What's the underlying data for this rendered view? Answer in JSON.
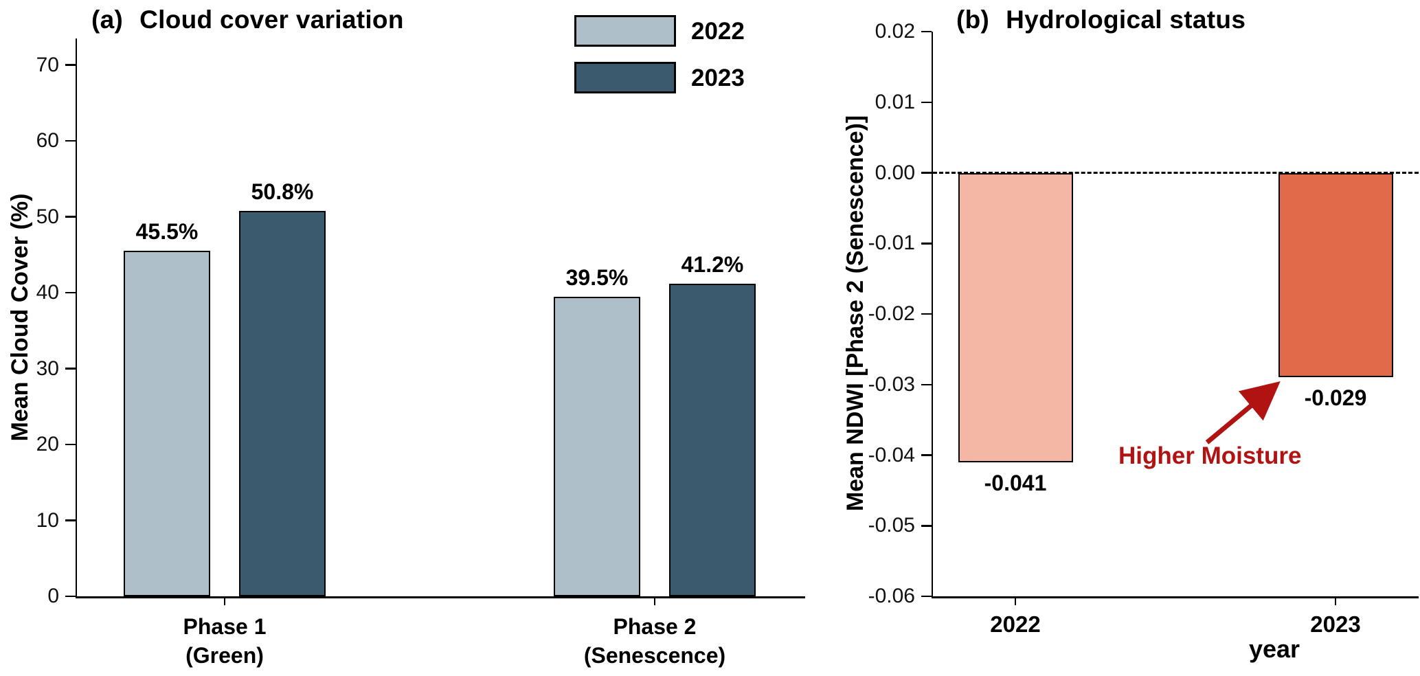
{
  "figure": {
    "panel_a": {
      "tag": "(a)",
      "title": "Cloud cover variation"
    },
    "panel_b": {
      "tag": "(b)",
      "title": "Hydrological status"
    }
  },
  "chart_data": [
    {
      "type": "bar",
      "panel": "a",
      "title": "(a) Cloud cover variation",
      "ylabel": "Mean Cloud Cover (%)",
      "categories": [
        "Phase 1\n(Green)",
        "Phase 2\n(Senescence)"
      ],
      "series": [
        {
          "name": "2022",
          "color": "#aebfc9",
          "values": [
            45.5,
            39.5
          ]
        },
        {
          "name": "2023",
          "color": "#3b5a6e",
          "values": [
            50.8,
            41.2
          ]
        }
      ],
      "bar_labels": [
        [
          "45.5%",
          "39.5%"
        ],
        [
          "50.8%",
          "41.2%"
        ]
      ],
      "ylim": [
        0,
        73.5
      ],
      "yticks": [
        0,
        10,
        20,
        30,
        40,
        50,
        60,
        70
      ],
      "legend_position": "top-center",
      "grid": false
    },
    {
      "type": "bar",
      "panel": "b",
      "title": "(b) Hydrological status",
      "xlabel": "year",
      "ylabel": "Mean NDWI [Phase 2 (Senescence)]",
      "categories": [
        "2022",
        "2023"
      ],
      "values": [
        -0.041,
        -0.029
      ],
      "colors": [
        "#f4b6a5",
        "#e16a4b"
      ],
      "bar_labels": [
        "-0.041",
        "-0.029"
      ],
      "ylim": [
        -0.06,
        0.02
      ],
      "yticks": [
        0.02,
        0.01,
        0,
        -0.01,
        -0.02,
        -0.03,
        -0.04,
        -0.05,
        -0.06
      ],
      "zero_line": "dashed",
      "grid": false,
      "annotation": {
        "text": "Higher Moisture",
        "color": "#b11212",
        "target": "2023 bar"
      }
    }
  ]
}
